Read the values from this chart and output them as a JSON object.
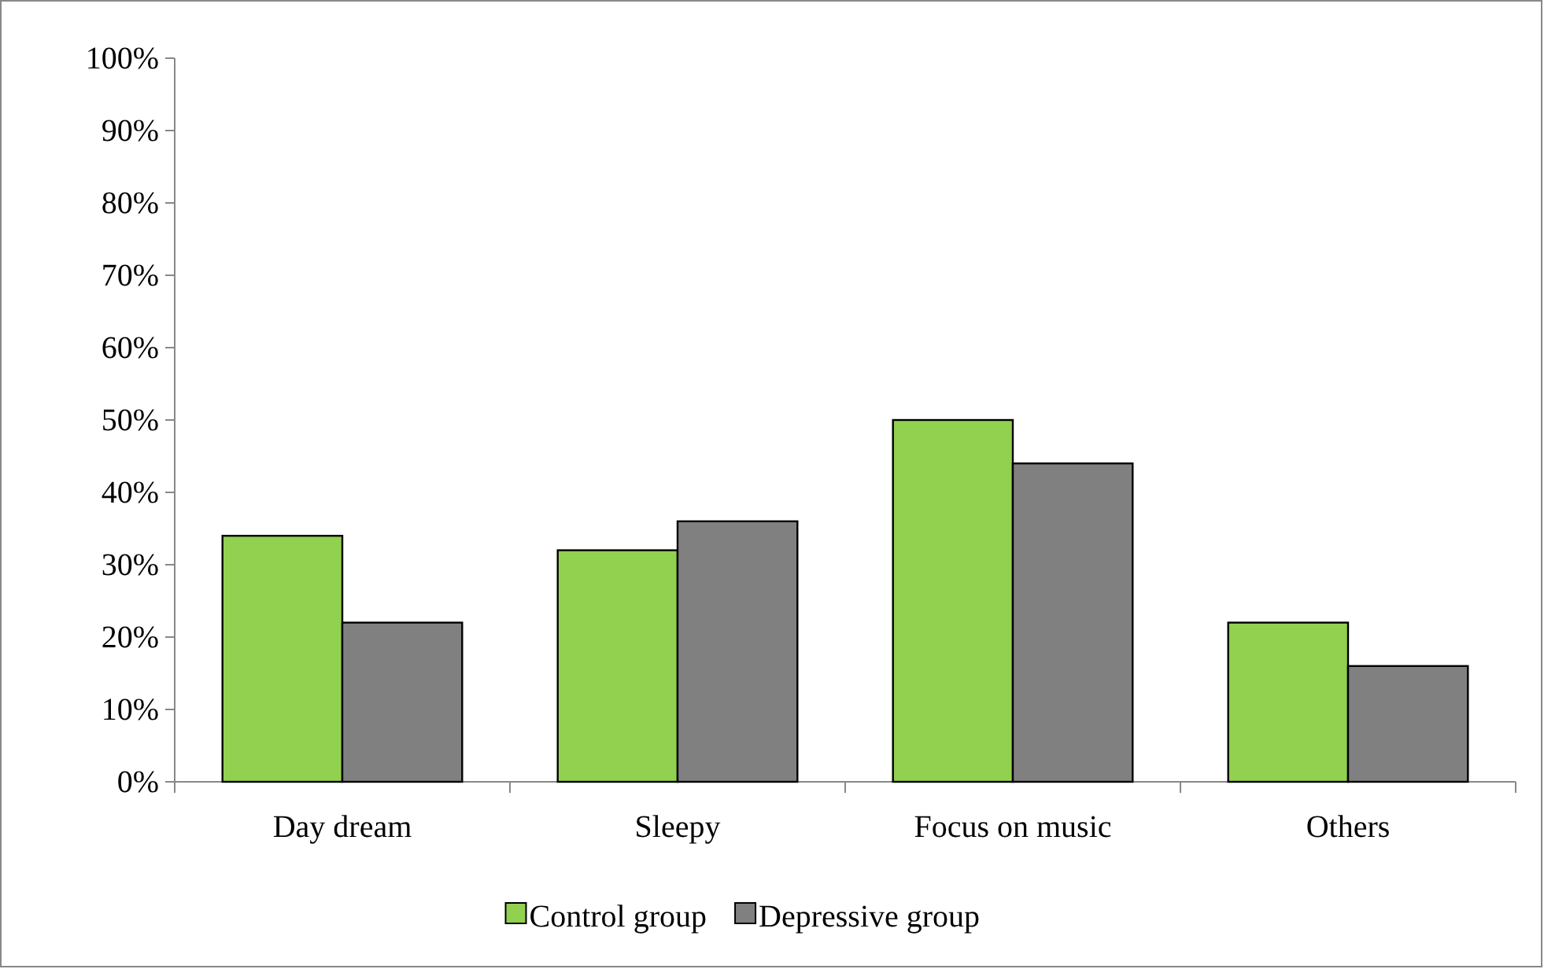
{
  "chart_data": {
    "type": "bar",
    "categories": [
      "Day dream",
      "Sleepy",
      "Focus on music",
      "Others"
    ],
    "series": [
      {
        "name": "Control group",
        "color": "#92d050",
        "values": [
          34,
          32,
          50,
          22
        ]
      },
      {
        "name": "Depressive group",
        "color": "#808080",
        "values": [
          22,
          36,
          44,
          16
        ]
      }
    ],
    "ylim": [
      0,
      100
    ],
    "yticks": [
      {
        "value": 0,
        "label": "0%"
      },
      {
        "value": 10,
        "label": "10%"
      },
      {
        "value": 20,
        "label": "20%"
      },
      {
        "value": 30,
        "label": "30%"
      },
      {
        "value": 40,
        "label": "40%"
      },
      {
        "value": 50,
        "label": "50%"
      },
      {
        "value": 60,
        "label": "60%"
      },
      {
        "value": 70,
        "label": "70%"
      },
      {
        "value": 80,
        "label": "80%"
      },
      {
        "value": 90,
        "label": "90%"
      },
      {
        "value": 100,
        "label": "100%"
      }
    ],
    "legend": "bottom"
  }
}
